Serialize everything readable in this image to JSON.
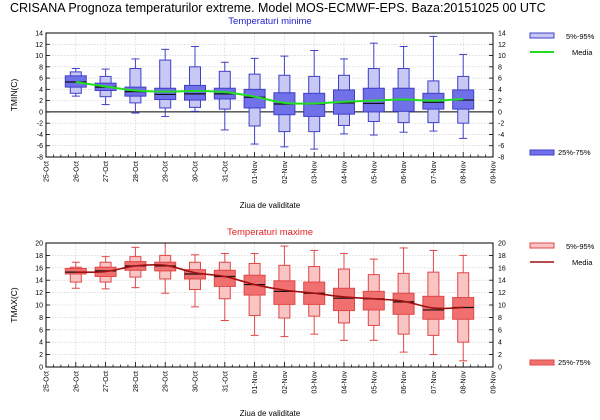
{
  "page_title": "CRISANA  Prognoza temperaturilor extreme.  Model MOS-ECMWF-EPS. Baza:20151025 00 UTC",
  "colors": {
    "tmin_box_outer": "#c8c8f4",
    "tmin_box_inner": "#7070e8",
    "tmin_stroke": "#4040c8",
    "tmin_mean": "#22dd22",
    "tmin_title": "#2222cc",
    "tmax_box_outer": "#f8c4c4",
    "tmax_box_inner": "#f07070",
    "tmax_stroke": "#e04848",
    "tmax_mean": "#a01010",
    "tmax_title": "#e02020"
  },
  "chart_data": [
    {
      "type": "box",
      "title": "Temperaturi minime",
      "xlabel": "Ziua de validitate",
      "ylabel": "TMIN(C)",
      "ylim": [
        -8,
        14
      ],
      "yticks": [
        14,
        12,
        10,
        8,
        6,
        4,
        2,
        0,
        -2,
        -4,
        -6,
        -8
      ],
      "xticks": [
        "25-Oct",
        "26-Oct",
        "27-Oct",
        "28-Oct",
        "29-Oct",
        "30-Oct",
        "31-Oct",
        "01-Nov",
        "02-Nov",
        "03-Nov",
        "04-Nov",
        "05-Nov",
        "06-Nov",
        "07-Nov",
        "08-Nov",
        "09-Nov"
      ],
      "grid": true,
      "zero_line": true,
      "legend": {
        "position": "right",
        "items": [
          "5%-95%",
          "Media",
          "25%-75%"
        ]
      },
      "categories": [
        "26-Oct",
        "27-Oct",
        "28-Oct",
        "29-Oct",
        "30-Oct",
        "31-Oct",
        "01-Nov",
        "02-Nov",
        "03-Nov",
        "04-Nov",
        "05-Nov",
        "06-Nov",
        "07-Nov",
        "08-Nov"
      ],
      "min": [
        2.8,
        1.3,
        -0.2,
        -0.8,
        0.1,
        -3.2,
        -5.7,
        -6.2,
        -6.6,
        -3.9,
        -4.1,
        -3.6,
        -3.4,
        -4.7
      ],
      "p5": [
        3.3,
        2.7,
        1.6,
        0.7,
        0.8,
        0.5,
        -2.5,
        -3.5,
        -3.5,
        -2.4,
        -1.7,
        -1.9,
        -1.9,
        -2.0
      ],
      "p25": [
        4.4,
        3.8,
        2.8,
        2.2,
        2.1,
        2.3,
        0.7,
        -0.5,
        -0.8,
        -0.4,
        0.0,
        0.1,
        0.5,
        0.5
      ],
      "median": [
        5.3,
        4.4,
        3.6,
        3.1,
        3.2,
        3.2,
        2.6,
        1.4,
        1.4,
        1.6,
        1.5,
        2.1,
        1.7,
        2.1
      ],
      "p75": [
        6.4,
        5.1,
        4.4,
        4.2,
        4.7,
        4.2,
        4.0,
        3.4,
        3.3,
        3.9,
        4.2,
        4.2,
        3.3,
        3.9
      ],
      "p95": [
        7.1,
        6.3,
        7.7,
        9.2,
        8.0,
        7.2,
        6.7,
        6.5,
        6.3,
        6.5,
        7.7,
        7.7,
        5.5,
        6.3
      ],
      "max": [
        7.7,
        7.6,
        9.4,
        11.1,
        11.6,
        8.8,
        9.5,
        9.9,
        10.9,
        9.4,
        12.2,
        11.6,
        13.4,
        10.2
      ],
      "mean": [
        5.3,
        4.5,
        3.8,
        3.6,
        3.7,
        3.5,
        2.7,
        1.6,
        1.5,
        1.8,
        2.0,
        2.2,
        2.0,
        2.3
      ]
    },
    {
      "type": "box",
      "title": "Temperaturi maxime",
      "xlabel": "Ziua de validitate",
      "ylabel": "TMAX(C)",
      "ylim": [
        0,
        20
      ],
      "yticks": [
        20,
        18,
        16,
        14,
        12,
        10,
        8,
        6,
        4,
        2,
        0
      ],
      "xticks": [
        "25-Oct",
        "26-Oct",
        "27-Oct",
        "28-Oct",
        "29-Oct",
        "30-Oct",
        "31-Oct",
        "01-Nov",
        "02-Nov",
        "03-Nov",
        "04-Nov",
        "05-Nov",
        "06-Nov",
        "07-Nov",
        "08-Nov",
        "09-Nov"
      ],
      "grid": true,
      "zero_line": false,
      "legend": {
        "position": "right",
        "items": [
          "5%-95%",
          "Media",
          "25%-75%"
        ]
      },
      "categories": [
        "26-Oct",
        "27-Oct",
        "28-Oct",
        "29-Oct",
        "30-Oct",
        "31-Oct",
        "01-Nov",
        "02-Nov",
        "03-Nov",
        "04-Nov",
        "05-Nov",
        "06-Nov",
        "07-Nov",
        "08-Nov"
      ],
      "min": [
        12.7,
        12.6,
        12.8,
        11.9,
        9.7,
        7.5,
        5.1,
        4.9,
        5.3,
        4.3,
        4.3,
        2.4,
        2.0,
        1.0
      ],
      "p5": [
        13.7,
        13.7,
        14.5,
        14.2,
        12.5,
        11.0,
        8.3,
        7.9,
        8.2,
        7.1,
        6.7,
        5.3,
        5.1,
        4.0
      ],
      "p25": [
        15.0,
        14.6,
        15.6,
        15.5,
        14.2,
        13.0,
        11.6,
        10.1,
        10.1,
        9.1,
        9.2,
        8.5,
        7.7,
        7.7
      ],
      "median": [
        15.3,
        15.5,
        16.3,
        16.3,
        15.0,
        14.6,
        13.3,
        12.2,
        11.9,
        11.1,
        11.0,
        10.5,
        9.2,
        9.6
      ],
      "p75": [
        15.9,
        16.1,
        17.0,
        16.9,
        15.7,
        15.6,
        14.8,
        13.9,
        13.7,
        12.7,
        12.2,
        11.9,
        11.4,
        11.2
      ],
      "p95": [
        16.1,
        16.9,
        17.8,
        18.0,
        16.9,
        16.9,
        16.7,
        16.4,
        16.2,
        15.8,
        14.9,
        15.1,
        15.3,
        15.2
      ],
      "max": [
        16.9,
        17.8,
        19.3,
        20.0,
        18.1,
        18.3,
        18.3,
        19.5,
        18.8,
        18.3,
        17.4,
        19.2,
        18.8,
        18.0
      ],
      "mean": [
        15.3,
        15.4,
        16.3,
        16.4,
        15.2,
        14.6,
        13.3,
        12.4,
        11.9,
        11.3,
        11.0,
        10.6,
        9.5,
        9.6
      ]
    }
  ]
}
